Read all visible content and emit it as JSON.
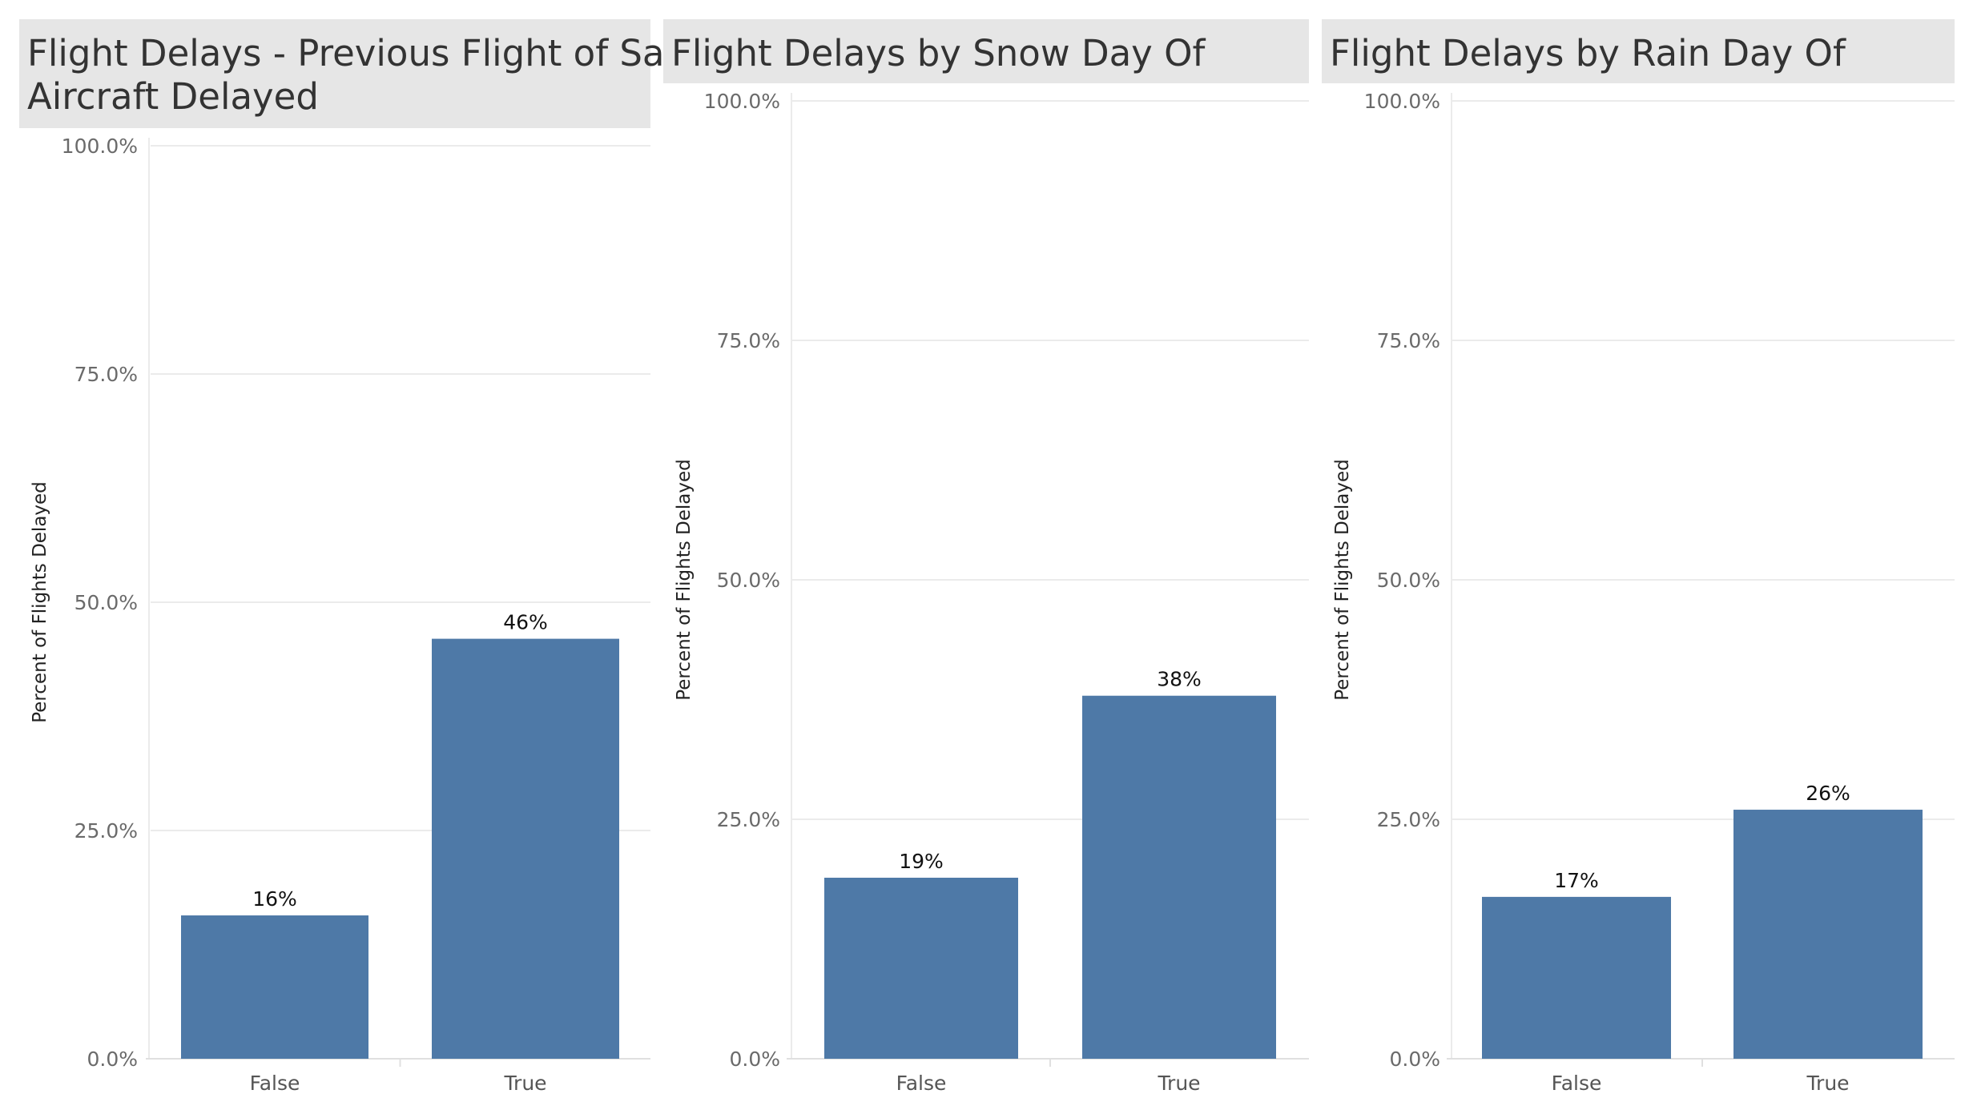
{
  "colors": {
    "bar": "#4e79a7",
    "title_bg": "#e6e6e6",
    "grid": "#ebebeb"
  },
  "y_ticks": [
    "0.0%",
    "25.0%",
    "50.0%",
    "75.0%",
    "100.0%"
  ],
  "chart_data": [
    {
      "type": "bar",
      "title_lines": [
        "Flight Delays - Previous Flight of Same",
        "Aircraft Delayed"
      ],
      "ylabel": "Percent of Flights Delayed",
      "xlabel": "",
      "categories": [
        "False",
        "True"
      ],
      "values": [
        15.7,
        46.0
      ],
      "data_labels": [
        "16%",
        "46%"
      ],
      "ylim": [
        0,
        100
      ],
      "grid": true
    },
    {
      "type": "bar",
      "title_lines": [
        "Flight Delays by Snow Day Of"
      ],
      "ylabel": "Percent of Flights Delayed",
      "xlabel": "",
      "categories": [
        "False",
        "True"
      ],
      "values": [
        18.9,
        37.9
      ],
      "data_labels": [
        "19%",
        "38%"
      ],
      "ylim": [
        0,
        100
      ],
      "grid": true
    },
    {
      "type": "bar",
      "title_lines": [
        "Flight Delays by Rain Day Of"
      ],
      "ylabel": "Percent of Flights Delayed",
      "xlabel": "",
      "categories": [
        "False",
        "True"
      ],
      "values": [
        16.9,
        26.0
      ],
      "data_labels": [
        "17%",
        "26%"
      ],
      "ylim": [
        0,
        100
      ],
      "grid": true
    }
  ]
}
